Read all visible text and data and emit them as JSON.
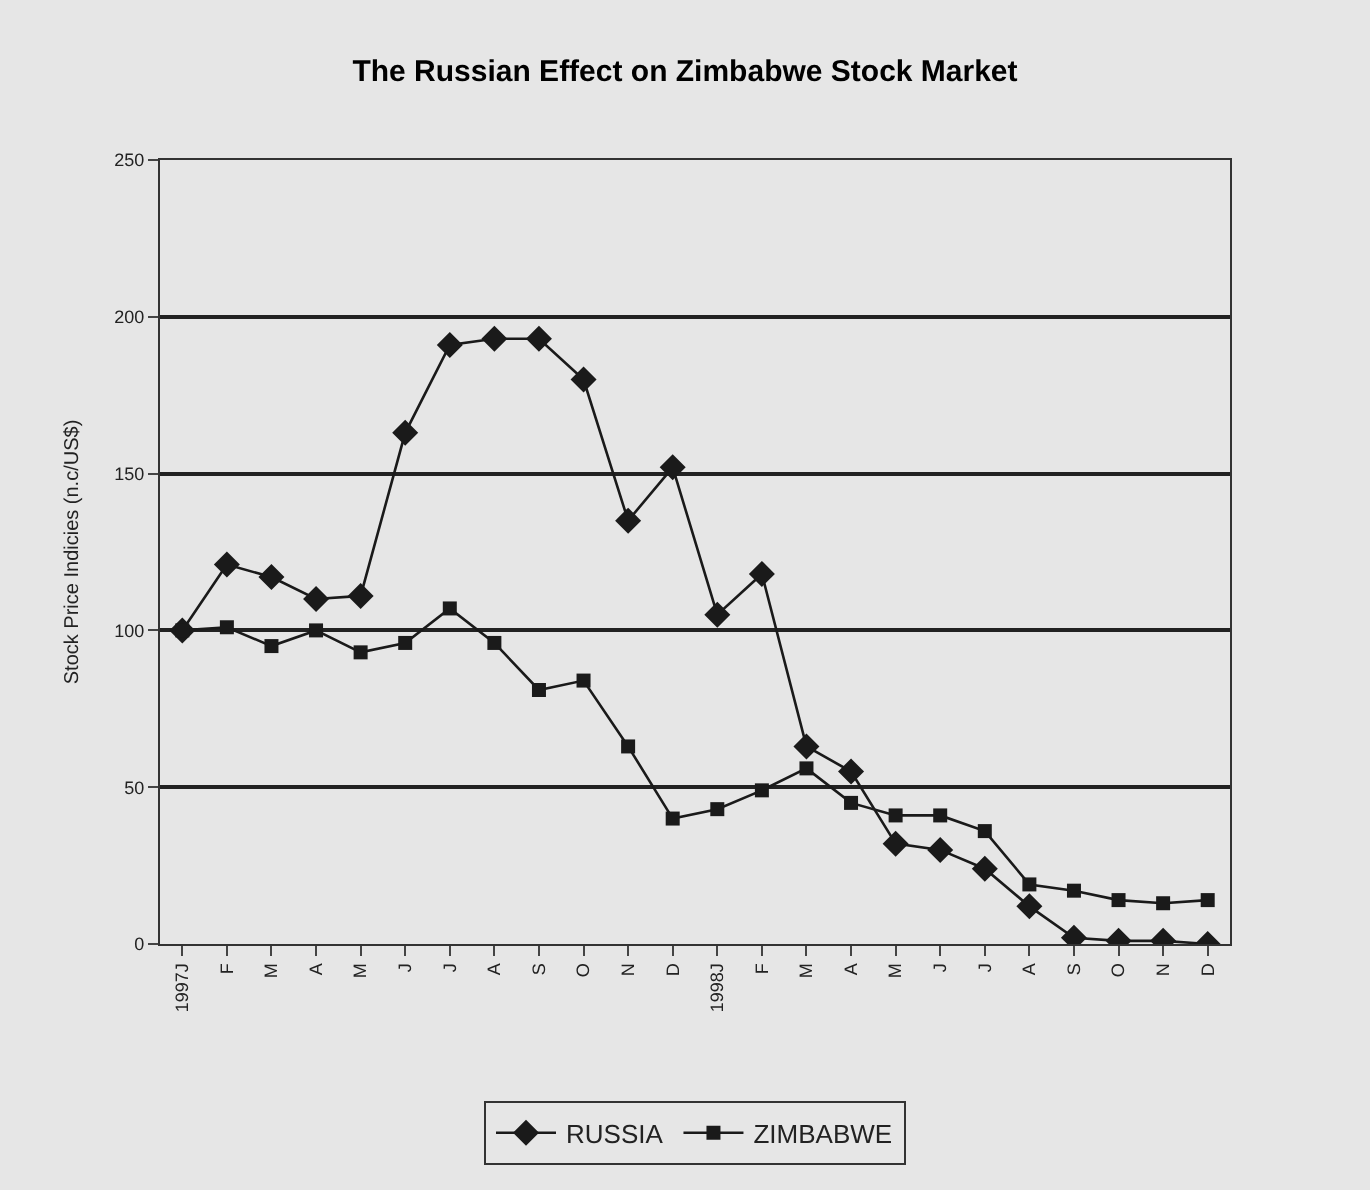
{
  "chart_data": {
    "type": "line",
    "title": "The Russian Effect on Zimbabwe Stock Market",
    "ylabel": "Stock Price Indicies (n.c/US$)",
    "categories": [
      "1997J",
      "F",
      "M",
      "A",
      "M",
      "J",
      "J",
      "A",
      "S",
      "O",
      "N",
      "D",
      "1998J",
      "F",
      "M",
      "A",
      "M",
      "J",
      "J",
      "A",
      "S",
      "O",
      "N",
      "D"
    ],
    "series": [
      {
        "name": "RUSSIA",
        "color": "#1a1a1a",
        "marker": "diamond",
        "values": [
          100,
          121,
          117,
          110,
          111,
          163,
          191,
          193,
          193,
          180,
          135,
          152,
          105,
          118,
          63,
          55,
          32,
          30,
          24,
          12,
          2,
          1,
          1,
          0
        ]
      },
      {
        "name": "ZIMBABWE",
        "color": "#1a1a1a",
        "marker": "square",
        "values": [
          100,
          101,
          95,
          100,
          93,
          96,
          107,
          96,
          81,
          84,
          63,
          40,
          43,
          49,
          56,
          45,
          41,
          41,
          36,
          19,
          17,
          14,
          13,
          14
        ]
      }
    ],
    "ylim": [
      0,
      250
    ],
    "yticks": [
      0,
      50,
      100,
      150,
      200,
      250
    ],
    "grid": "y",
    "legend": "bottom",
    "line_style": "solid"
  }
}
